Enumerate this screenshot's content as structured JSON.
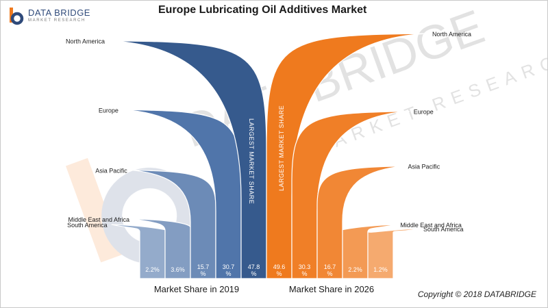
{
  "chart_data": {
    "type": "bar",
    "title": "Europe Lubricating Oil Additives Market",
    "groups": [
      {
        "name": "Market Share in 2019",
        "color": "#3d66a0",
        "categories": [
          "South America",
          "Middle East and Africa",
          "Asia Pacific",
          "Europe",
          "North America"
        ],
        "values": [
          2.2,
          3.6,
          15.7,
          30.7,
          47.8
        ],
        "value_labels": [
          "2.2%",
          "3.6%",
          "15.7 %",
          "30.7 %",
          "47.8 %"
        ],
        "annotation": "LARGEST MARKET SHARE"
      },
      {
        "name": "Market Share in 2026",
        "color": "#ef7a1e",
        "categories": [
          "North America",
          "Europe",
          "Asia Pacific",
          "Middle East and Africa",
          "South America"
        ],
        "values": [
          49.6,
          30.3,
          16.7,
          2.2,
          1.2
        ],
        "value_labels": [
          "49.6 %",
          "30.3 %",
          "16.7 %",
          "2.2%",
          "1.2%"
        ],
        "annotation": "LARGEST MARKET SHARE"
      }
    ]
  },
  "header": {
    "logo_name": "DATA BRIDGE",
    "logo_tagline": "MARKET RESEARCH"
  },
  "watermark": {
    "text": "DATA BRIDGE",
    "subtext": "MARKET RESEARCH"
  },
  "footer": {
    "copyright": "Copyright © 2018 DATABRIDGE"
  }
}
